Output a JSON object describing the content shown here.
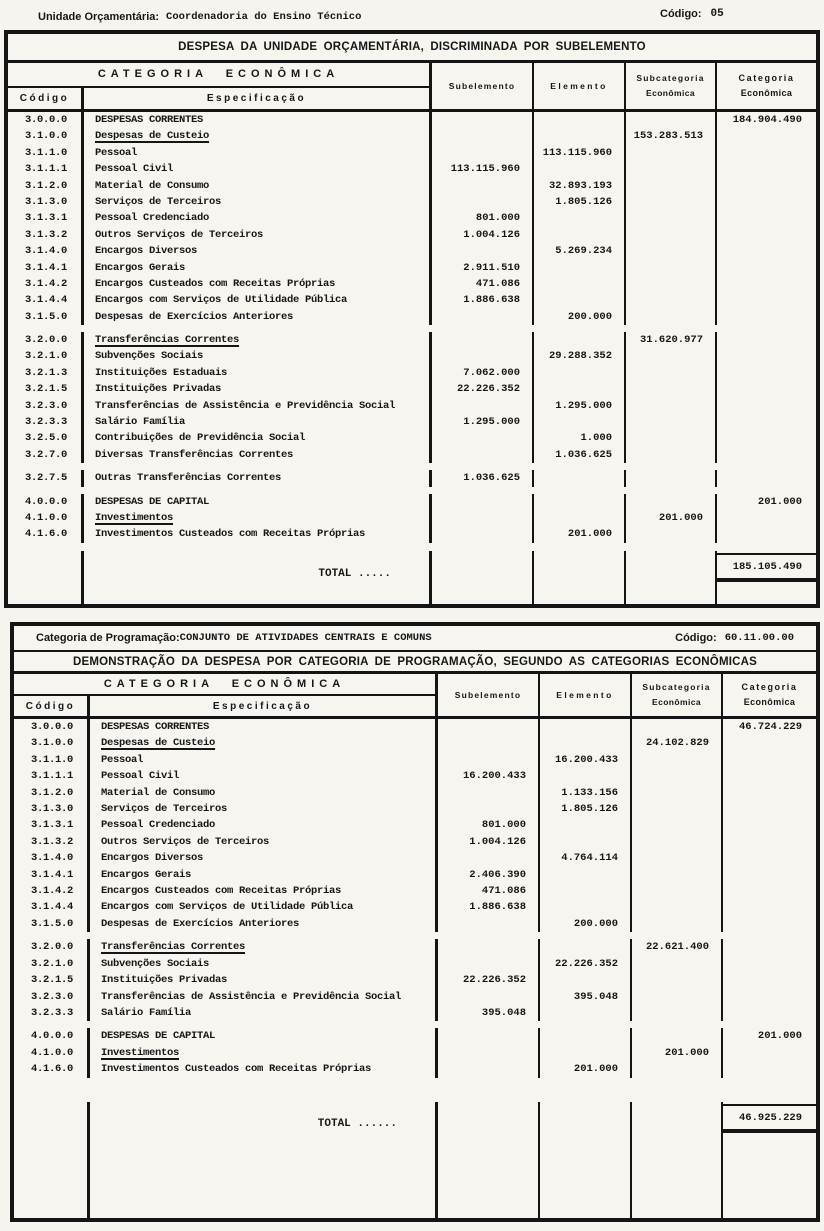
{
  "page_header": {
    "unit_label": "Unidade Orçamentária:",
    "unit_value": "Coordenadoria do Ensino Técnico",
    "code_label": "Código:",
    "code_value": "05"
  },
  "columns": {
    "group": "CATEGORIA ECONÔMICA",
    "code": "Código",
    "spec": "Especificação",
    "sub": "Subelemento",
    "elem": "Elemento",
    "subcat_l1": "Subcategoria",
    "subcat_l2": "Econômica",
    "cat_l1": "Categoria",
    "cat_l2": "Econômica"
  },
  "table1": {
    "title": "DESPESA DA UNIDADE ORÇAMENTÁRIA, DISCRIMINADA POR SUBELEMENTO",
    "rows": [
      {
        "code": "3.0.0.0",
        "spec": "DESPESAS CORRENTES",
        "cat": "184.904.490"
      },
      {
        "code": "3.1.0.0",
        "spec": "Despesas de Custeio",
        "u": true,
        "subcat": "153.283.513"
      },
      {
        "code": "3.1.1.0",
        "spec": "Pessoal",
        "elem": "113.115.960"
      },
      {
        "code": "3.1.1.1",
        "spec": "Pessoal Civil",
        "sub": "113.115.960"
      },
      {
        "code": "3.1.2.0",
        "spec": "Material de Consumo",
        "elem": "32.893.193"
      },
      {
        "code": "3.1.3.0",
        "spec": "Serviços de Terceiros",
        "elem": "1.805.126"
      },
      {
        "code": "3.1.3.1",
        "spec": "Pessoal Credenciado",
        "sub": "801.000"
      },
      {
        "code": "3.1.3.2",
        "spec": "Outros Serviços de Terceiros",
        "sub": "1.004.126"
      },
      {
        "code": "3.1.4.0",
        "spec": "Encargos Diversos",
        "elem": "5.269.234"
      },
      {
        "code": "3.1.4.1",
        "spec": "Encargos Gerais",
        "sub": "2.911.510"
      },
      {
        "code": "3.1.4.2",
        "spec": "Encargos Custeados com Receitas Próprias",
        "sub": "471.086"
      },
      {
        "code": "3.1.4.4",
        "spec": "Encargos com Serviços de Utilidade Pública",
        "sub": "1.886.638"
      },
      {
        "code": "3.1.5.0",
        "spec": "Despesas de Exercícios Anteriores",
        "elem": "200.000"
      },
      {
        "code": "3.2.0.0",
        "spec": "Transferências Correntes",
        "u": true,
        "subcat": "31.620.977",
        "gap": true
      },
      {
        "code": "3.2.1.0",
        "spec": "Subvenções Sociais",
        "elem": "29.288.352"
      },
      {
        "code": "3.2.1.3",
        "spec": "Instituições Estaduais",
        "sub": "7.062.000"
      },
      {
        "code": "3.2.1.5",
        "spec": "Instituições Privadas",
        "sub": "22.226.352"
      },
      {
        "code": "3.2.3.0",
        "spec": "Transferências de Assistência e Previdência Social",
        "elem": "1.295.000"
      },
      {
        "code": "3.2.3.3",
        "spec": "Salário Família",
        "sub": "1.295.000"
      },
      {
        "code": "3.2.5.0",
        "spec": "Contribuições de Previdência Social",
        "elem": "1.000"
      },
      {
        "code": "3.2.7.0",
        "spec": "Diversas Transferências Correntes",
        "elem": "1.036.625"
      },
      {
        "code": "3.2.7.5",
        "spec": "Outras Transferências Correntes",
        "sub": "1.036.625",
        "gap": true
      },
      {
        "code": "4.0.0.0",
        "spec": "DESPESAS DE CAPITAL",
        "cat": "201.000",
        "gap": true
      },
      {
        "code": "4.1.0.0",
        "spec": "Investimentos",
        "u": true,
        "subcat": "201.000"
      },
      {
        "code": "4.1.6.0",
        "spec": "Investimentos Custeados com Receitas Próprias",
        "elem": "201.000"
      }
    ],
    "total_label": "TOTAL .....",
    "total_value": "185.105.490"
  },
  "table2": {
    "strip_label": "Categoria de Programação:",
    "strip_value": "CONJUNTO DE ATIVIDADES CENTRAIS E COMUNS",
    "strip_code_label": "Código:",
    "strip_code_value": "60.11.00.00",
    "title": "DEMONSTRAÇÃO DA DESPESA POR CATEGORIA DE PROGRAMAÇÃO, SEGUNDO AS CATEGORIAS ECONÔMICAS",
    "rows": [
      {
        "code": "3.0.0.0",
        "spec": "DESPESAS CORRENTES",
        "cat": "46.724.229"
      },
      {
        "code": "3.1.0.0",
        "spec": "Despesas de Custeio",
        "u": true,
        "subcat": "24.102.829"
      },
      {
        "code": "3.1.1.0",
        "spec": "Pessoal",
        "elem": "16.200.433"
      },
      {
        "code": "3.1.1.1",
        "spec": "Pessoal Civil",
        "sub": "16.200.433"
      },
      {
        "code": "3.1.2.0",
        "spec": "Material de Consumo",
        "elem": "1.133.156"
      },
      {
        "code": "3.1.3.0",
        "spec": "Serviços de Terceiros",
        "elem": "1.805.126"
      },
      {
        "code": "3.1.3.1",
        "spec": "Pessoal Credenciado",
        "sub": "801.000"
      },
      {
        "code": "3.1.3.2",
        "spec": "Outros Serviços de Terceiros",
        "sub": "1.004.126"
      },
      {
        "code": "3.1.4.0",
        "spec": "Encargos Diversos",
        "elem": "4.764.114"
      },
      {
        "code": "3.1.4.1",
        "spec": "Encargos Gerais",
        "sub": "2.406.390"
      },
      {
        "code": "3.1.4.2",
        "spec": "Encargos Custeados com Receitas Próprias",
        "sub": "471.086"
      },
      {
        "code": "3.1.4.4",
        "spec": "Encargos com Serviços de Utilidade Pública",
        "sub": "1.886.638"
      },
      {
        "code": "3.1.5.0",
        "spec": "Despesas de Exercícios Anteriores",
        "elem": "200.000"
      },
      {
        "code": "3.2.0.0",
        "spec": "Transferências Correntes",
        "u": true,
        "subcat": "22.621.400",
        "gap": true
      },
      {
        "code": "3.2.1.0",
        "spec": "Subvenções Sociais",
        "elem": "22.226.352"
      },
      {
        "code": "3.2.1.5",
        "spec": "Instituições Privadas",
        "sub": "22.226.352"
      },
      {
        "code": "3.2.3.0",
        "spec": "Transferências de Assistência e Previdência Social",
        "elem": "395.048"
      },
      {
        "code": "3.2.3.3",
        "spec": "Salário Família",
        "sub": "395.048"
      },
      {
        "code": "4.0.0.0",
        "spec": "DESPESAS DE CAPITAL",
        "cat": "201.000",
        "gap": true
      },
      {
        "code": "4.1.0.0",
        "spec": "Investimentos",
        "u": true,
        "subcat": "201.000"
      },
      {
        "code": "4.1.6.0",
        "spec": "Investimentos Custeados com Receitas Próprias",
        "elem": "201.000"
      }
    ],
    "total_label": "TOTAL ......",
    "total_value": "46.925.229"
  },
  "colors": {
    "ink": "#151515",
    "paper": "#f5f4ef"
  }
}
